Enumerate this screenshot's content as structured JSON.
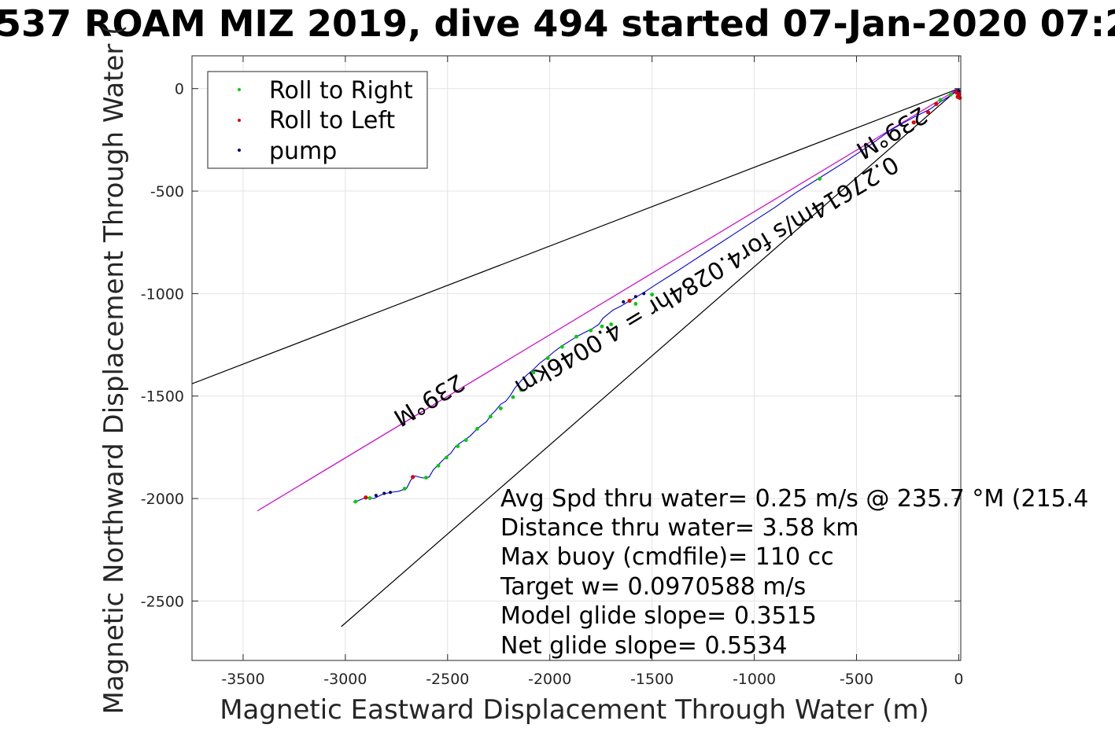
{
  "chart_data": {
    "type": "line",
    "title": "537 ROAM MIZ 2019, dive 494 started 07-Jan-2020 07:2",
    "xlabel": "Magnetic Eastward Displacement Through Water (m)",
    "ylabel": "Magnetic Northward Displacement Through Water (",
    "xlim": [
      -3750,
      10
    ],
    "ylim": [
      -2790,
      160
    ],
    "xticks": [
      -3500,
      -3000,
      -2500,
      -2000,
      -1500,
      -1000,
      -500,
      0
    ],
    "yticks": [
      0,
      -500,
      -1000,
      -1500,
      -2000,
      -2500
    ],
    "grid": true,
    "legend_position": "top-left",
    "legend": [
      {
        "label": "Roll to Right",
        "color": "#00cc00"
      },
      {
        "label": "Roll to Left",
        "color": "#dd0000"
      },
      {
        "label": "pump",
        "color": "#000066"
      }
    ],
    "reference_lines": [
      {
        "name": "heading-left-bound",
        "color": "#000000",
        "x": [
          0,
          -3750
        ],
        "y": [
          0,
          -1440
        ]
      },
      {
        "name": "heading-right-bound",
        "color": "#000000",
        "x": [
          0,
          -3020
        ],
        "y": [
          0,
          -2625
        ]
      },
      {
        "name": "heading-center",
        "color": "#cc00cc",
        "x": [
          0,
          -3430
        ],
        "y": [
          0,
          -2060
        ]
      }
    ],
    "track": {
      "color": "#0000dd",
      "x": [
        -2960,
        -2900,
        -2860,
        -2820,
        -2780,
        -2740,
        -2700,
        -2680,
        -2660,
        -2620,
        -2590,
        -2570,
        -2545,
        -2520,
        -2505,
        -2485,
        -2460,
        -2440,
        -2410,
        -2390,
        -2355,
        -2330,
        -2310,
        -2285,
        -2265,
        -2240,
        -2215,
        -2195,
        -2170,
        -2140,
        -2110,
        -2080,
        -2050,
        -2010,
        -1975,
        -1940,
        -1900,
        -1860,
        -1820,
        -1790,
        -1760,
        -1740,
        -1715,
        -1690,
        -1650,
        -1600,
        -1540,
        -1480,
        -1400,
        -1300,
        -1200,
        -1100,
        -1000,
        -900,
        -800,
        -680,
        -560,
        -440,
        -330,
        -220,
        -140,
        -90,
        -50,
        -20,
        -5,
        0,
        5,
        0
      ],
      "y": [
        -2020,
        -1995,
        -2000,
        -1980,
        -1970,
        -1965,
        -1950,
        -1910,
        -1890,
        -1900,
        -1895,
        -1860,
        -1835,
        -1810,
        -1795,
        -1780,
        -1745,
        -1730,
        -1710,
        -1695,
        -1660,
        -1640,
        -1625,
        -1590,
        -1570,
        -1540,
        -1525,
        -1500,
        -1460,
        -1425,
        -1395,
        -1370,
        -1340,
        -1310,
        -1280,
        -1255,
        -1230,
        -1205,
        -1185,
        -1170,
        -1150,
        -1120,
        -1100,
        -1080,
        -1060,
        -1030,
        -995,
        -955,
        -905,
        -840,
        -775,
        -710,
        -645,
        -580,
        -510,
        -435,
        -360,
        -280,
        -200,
        -140,
        -100,
        -65,
        -40,
        -20,
        -15,
        -5,
        -30,
        -40
      ]
    },
    "markers": {
      "roll_right": {
        "x": [
          -2950,
          -2880,
          -2710,
          -2605,
          -2545,
          -2505,
          -2450,
          -2410,
          -2355,
          -2290,
          -2240,
          -2180,
          -2140,
          -2080,
          -2010,
          -1940,
          -1870,
          -1800,
          -1745,
          -1700,
          -1580,
          -1500,
          -680,
          -90,
          -40,
          0
        ],
        "y": [
          -2015,
          -1998,
          -1952,
          -1898,
          -1840,
          -1800,
          -1745,
          -1715,
          -1660,
          -1600,
          -1560,
          -1505,
          -1470,
          -1385,
          -1315,
          -1260,
          -1210,
          -1180,
          -1160,
          -1150,
          -1050,
          -1005,
          -440,
          -55,
          -30,
          -15
        ]
      },
      "roll_left": {
        "x": [
          -2900,
          -2670,
          -1610,
          -220,
          -150,
          -110,
          -10,
          0,
          0,
          -5,
          5
        ],
        "y": [
          -1995,
          -1895,
          -1035,
          -165,
          -115,
          -75,
          -20,
          -25,
          -35,
          -40,
          -45
        ]
      },
      "pump": {
        "x": [
          -2850,
          -2810,
          -2780,
          -1640,
          -1580,
          -1540,
          0
        ],
        "y": [
          -1985,
          -1975,
          -1970,
          -1040,
          -1015,
          -1000,
          -10
        ]
      }
    }
  },
  "annotations": {
    "lines": [
      "Avg Spd thru water=  0.25 m/s @ 235.7 °M (215.4",
      "Distance thru water=  3.58 km",
      "Max buoy (cmdfile)= 110 cc",
      "Target w= 0.0970588 m/s",
      "Model glide slope= 0.3515",
      "Net glide slope= 0.5534"
    ],
    "heading_label_left": "239°M",
    "heading_label_right": "239°M",
    "speed_label": "0.27614m/s for4.0284hr = 4.0046km"
  }
}
